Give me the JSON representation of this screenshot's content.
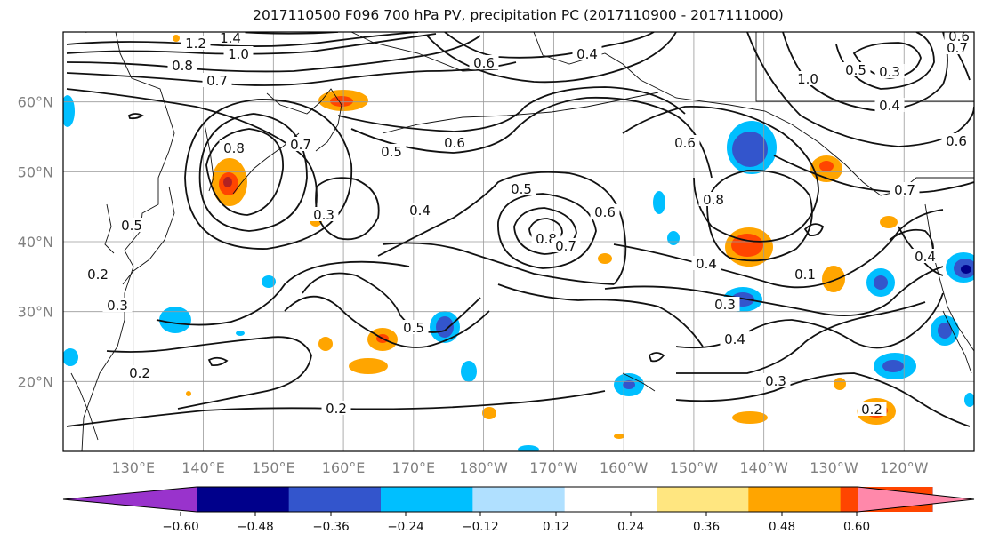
{
  "title": "2017110500 F096 700 hPa PV, precipitation PC (2017110900 - 2017111000)",
  "lat_labels": [
    "60°N",
    "50°N",
    "40°N",
    "30°N",
    "20°N"
  ],
  "lon_labels": [
    "130°E",
    "140°E",
    "150°E",
    "160°E",
    "170°E",
    "180°W",
    "170°W",
    "160°W",
    "150°W",
    "140°W",
    "130°W",
    "120°W"
  ],
  "map": {
    "extent_lon": [
      120,
      250
    ],
    "extent_lat": [
      10,
      70
    ],
    "grid_lats": [
      20,
      30,
      40,
      50,
      60
    ],
    "grid_lons": [
      130,
      140,
      150,
      160,
      170,
      180,
      190,
      200,
      210,
      220,
      230,
      240
    ]
  },
  "colorbar": {
    "ticks": [
      "−0.60",
      "−0.48",
      "−0.36",
      "−0.24",
      "−0.12",
      "0.12",
      "0.24",
      "0.36",
      "0.48",
      "0.60"
    ],
    "colors": [
      "#9933cc",
      "#00008b",
      "#3355cc",
      "#00bfff",
      "#b0e0ff",
      "#ffffff",
      "#ffe680",
      "#ffa500",
      "#ff4500",
      "#b22222",
      "#ff88aa"
    ]
  },
  "contour_labels": [
    {
      "text": "1.4"
    },
    {
      "text": "1.2"
    },
    {
      "text": "1.0"
    },
    {
      "text": "0.8"
    },
    {
      "text": "0.7"
    },
    {
      "text": "0.8"
    },
    {
      "text": "0.7"
    },
    {
      "text": "0.5"
    },
    {
      "text": "0.6"
    },
    {
      "text": "0.5"
    },
    {
      "text": "0.4"
    },
    {
      "text": "0.3"
    },
    {
      "text": "0.8"
    },
    {
      "text": "0.7"
    },
    {
      "text": "0.6"
    },
    {
      "text": "0.6"
    },
    {
      "text": "0.6"
    },
    {
      "text": "0.8"
    },
    {
      "text": "0.4"
    },
    {
      "text": "0.3"
    },
    {
      "text": "0.4"
    },
    {
      "text": "0.3"
    },
    {
      "text": "0.5"
    },
    {
      "text": "0.2"
    },
    {
      "text": "0.2"
    },
    {
      "text": "0.3"
    },
    {
      "text": "0.5"
    },
    {
      "text": "0.2"
    },
    {
      "text": "1.0"
    },
    {
      "text": "0.5"
    },
    {
      "text": "0.4"
    },
    {
      "text": "0.3"
    },
    {
      "text": "0.6"
    },
    {
      "text": "0.7"
    },
    {
      "text": "0.4"
    },
    {
      "text": "0.4"
    },
    {
      "text": "0.7"
    },
    {
      "text": "0.2"
    },
    {
      "text": "0.6"
    },
    {
      "text": "0.1"
    }
  ]
}
